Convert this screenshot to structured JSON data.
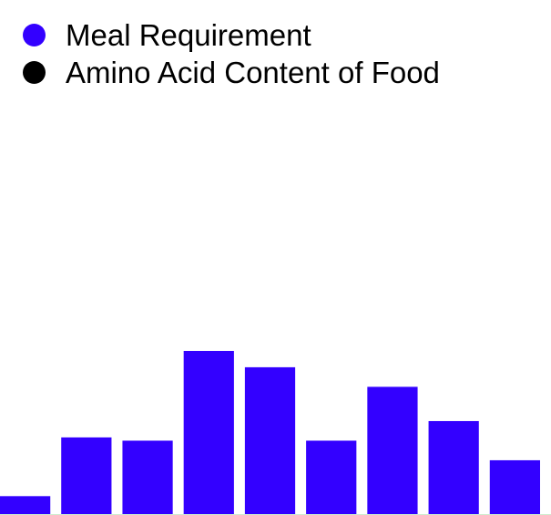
{
  "legend": {
    "items": [
      {
        "label": "Meal Requirement",
        "color": "#3300ff"
      },
      {
        "label": "Amino Acid Content of Food",
        "color": "#000000"
      }
    ]
  },
  "chart_data": {
    "type": "bar",
    "title": "",
    "xlabel": "",
    "ylabel": "",
    "categories": [
      "",
      "",
      "",
      "",
      "",
      "",
      "",
      "",
      ""
    ],
    "series": [
      {
        "name": "Meal Requirement",
        "color": "#3300ff",
        "values": [
          11,
          47,
          45,
          100,
          90,
          45,
          78,
          57,
          33
        ]
      },
      {
        "name": "Amino Acid Content of Food",
        "color": "#000000",
        "values": [
          0,
          0,
          0,
          0,
          0,
          0,
          0,
          0,
          0
        ]
      }
    ],
    "ylim": [
      0,
      100
    ],
    "grid": false,
    "legend_position": "top-left"
  }
}
